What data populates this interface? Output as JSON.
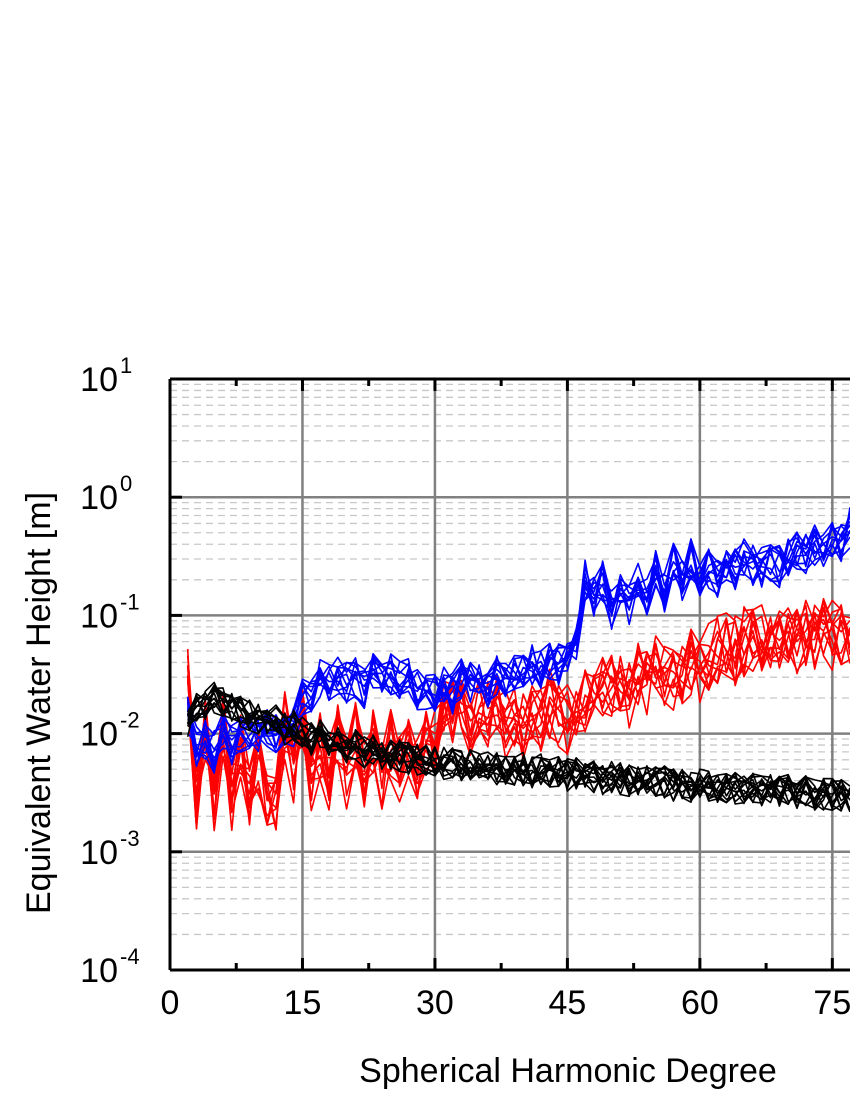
{
  "chart_data": {
    "type": "line",
    "xlabel": "Spherical Harmonic Degree",
    "ylabel": "Equivalent Water Height [m]",
    "x_ticks": [
      "0",
      "15",
      "30",
      "45",
      "60",
      "75"
    ],
    "y_ticks": [
      {
        "base": "10",
        "exp": "1",
        "value": 10
      },
      {
        "base": "10",
        "exp": "0",
        "value": 1
      },
      {
        "base": "10",
        "exp": "-1",
        "value": 0.1
      },
      {
        "base": "10",
        "exp": "-2",
        "value": 0.01
      },
      {
        "base": "10",
        "exp": "-3",
        "value": 0.001
      },
      {
        "base": "10",
        "exp": "-4",
        "value": 0.0001
      }
    ],
    "xlim": [
      0,
      77
    ],
    "ylim": [
      0.0001,
      10
    ],
    "yscale": "log",
    "grid": true,
    "series": [
      {
        "color": "#ff0000",
        "x": [
          2,
          3,
          4,
          5,
          6,
          7,
          8,
          9,
          10,
          11,
          12,
          13,
          14,
          15,
          16,
          17,
          18,
          19,
          20,
          21,
          22,
          23,
          24,
          25,
          26,
          27,
          28,
          29,
          30,
          31,
          32,
          33,
          34,
          35,
          36,
          37,
          38,
          39,
          40,
          41,
          42,
          43,
          44,
          45,
          46,
          47,
          48,
          49,
          50,
          51,
          52,
          53,
          54,
          55,
          56,
          57,
          58,
          59,
          60,
          61,
          62,
          63,
          64,
          65,
          66,
          67,
          68,
          69,
          70,
          71,
          72,
          73,
          74,
          75,
          76,
          77
        ],
        "values": [
          0.03,
          0.003,
          0.01,
          0.0025,
          0.012,
          0.003,
          0.008,
          0.003,
          0.006,
          0.0028,
          0.003,
          0.012,
          0.0045,
          0.012,
          0.004,
          0.008,
          0.0045,
          0.01,
          0.0045,
          0.01,
          0.0042,
          0.009,
          0.0042,
          0.008,
          0.0052,
          0.008,
          0.005,
          0.008,
          0.009,
          0.02,
          0.016,
          0.018,
          0.013,
          0.016,
          0.014,
          0.02,
          0.012,
          0.015,
          0.012,
          0.015,
          0.013,
          0.018,
          0.014,
          0.013,
          0.016,
          0.02,
          0.023,
          0.028,
          0.027,
          0.028,
          0.022,
          0.03,
          0.026,
          0.034,
          0.03,
          0.028,
          0.035,
          0.04,
          0.033,
          0.045,
          0.05,
          0.055,
          0.05,
          0.06,
          0.058,
          0.065,
          0.06,
          0.062,
          0.068,
          0.062,
          0.07,
          0.065,
          0.072,
          0.068,
          0.075,
          0.07
        ],
        "spread": 0.3,
        "replicas": 12
      },
      {
        "color": "#0000ff",
        "x": [
          2,
          3,
          4,
          5,
          6,
          7,
          8,
          9,
          10,
          11,
          12,
          13,
          14,
          15,
          16,
          17,
          18,
          19,
          20,
          21,
          22,
          23,
          24,
          25,
          26,
          27,
          28,
          29,
          30,
          31,
          32,
          33,
          34,
          35,
          36,
          37,
          38,
          39,
          40,
          41,
          42,
          43,
          44,
          45,
          46,
          47,
          48,
          49,
          50,
          51,
          52,
          53,
          54,
          55,
          56,
          57,
          58,
          59,
          60,
          61,
          62,
          63,
          64,
          65,
          66,
          67,
          68,
          69,
          70,
          71,
          72,
          73,
          74,
          75,
          76,
          77
        ],
        "values": [
          0.015,
          0.008,
          0.009,
          0.007,
          0.01,
          0.008,
          0.009,
          0.01,
          0.009,
          0.011,
          0.01,
          0.012,
          0.011,
          0.02,
          0.019,
          0.028,
          0.026,
          0.03,
          0.027,
          0.03,
          0.024,
          0.034,
          0.03,
          0.032,
          0.028,
          0.034,
          0.024,
          0.024,
          0.022,
          0.026,
          0.022,
          0.03,
          0.027,
          0.03,
          0.025,
          0.032,
          0.03,
          0.035,
          0.032,
          0.038,
          0.035,
          0.04,
          0.038,
          0.05,
          0.055,
          0.2,
          0.14,
          0.2,
          0.11,
          0.15,
          0.12,
          0.22,
          0.14,
          0.25,
          0.16,
          0.3,
          0.2,
          0.3,
          0.22,
          0.25,
          0.2,
          0.3,
          0.25,
          0.32,
          0.27,
          0.26,
          0.28,
          0.26,
          0.3,
          0.34,
          0.32,
          0.4,
          0.35,
          0.45,
          0.42,
          0.55
        ],
        "spread": 0.18,
        "replicas": 12
      },
      {
        "color": "#000000",
        "x": [
          2,
          3,
          4,
          5,
          6,
          7,
          8,
          9,
          10,
          11,
          12,
          13,
          14,
          15,
          16,
          17,
          18,
          19,
          20,
          21,
          22,
          23,
          24,
          25,
          26,
          27,
          28,
          29,
          30,
          31,
          32,
          33,
          34,
          35,
          36,
          37,
          38,
          39,
          40,
          41,
          42,
          43,
          44,
          45,
          46,
          47,
          48,
          49,
          50,
          51,
          52,
          53,
          54,
          55,
          56,
          57,
          58,
          59,
          60,
          61,
          62,
          63,
          64,
          65,
          66,
          67,
          68,
          69,
          70,
          71,
          72,
          73,
          74,
          75,
          76,
          77
        ],
        "values": [
          0.012,
          0.016,
          0.018,
          0.02,
          0.018,
          0.016,
          0.015,
          0.014,
          0.013,
          0.012,
          0.013,
          0.011,
          0.012,
          0.01,
          0.009,
          0.0095,
          0.008,
          0.0085,
          0.0075,
          0.008,
          0.007,
          0.0072,
          0.0068,
          0.0065,
          0.0066,
          0.0062,
          0.006,
          0.0058,
          0.0058,
          0.0056,
          0.0057,
          0.0055,
          0.0054,
          0.0052,
          0.0053,
          0.005,
          0.0051,
          0.0049,
          0.005,
          0.0048,
          0.0049,
          0.0046,
          0.0047,
          0.0045,
          0.0046,
          0.0044,
          0.0043,
          0.0042,
          0.0043,
          0.0041,
          0.004,
          0.0041,
          0.0039,
          0.0038,
          0.0039,
          0.0037,
          0.0038,
          0.0036,
          0.0037,
          0.0035,
          0.0036,
          0.0034,
          0.0035,
          0.0033,
          0.0034,
          0.0033,
          0.0034,
          0.0032,
          0.0033,
          0.0031,
          0.0032,
          0.003,
          0.0031,
          0.0031,
          0.003,
          0.003
        ],
        "spread": 0.14,
        "replicas": 14
      }
    ]
  }
}
